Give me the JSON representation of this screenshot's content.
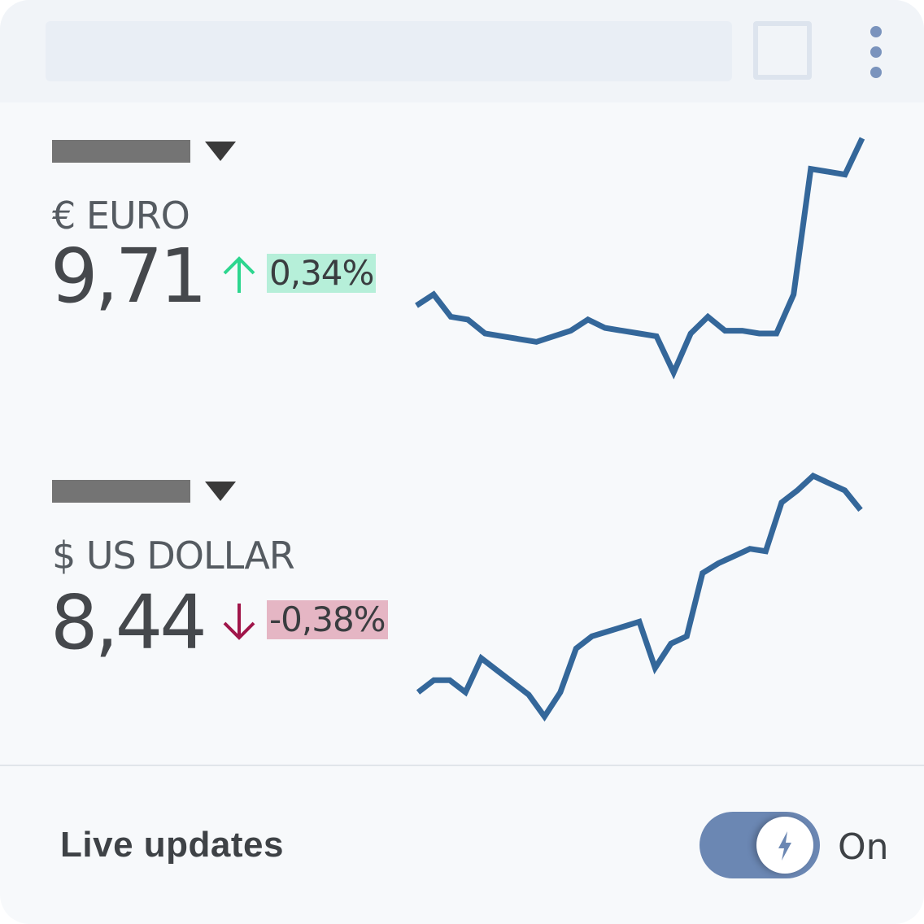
{
  "header": {
    "search_placeholder": "",
    "square_icon": "square-outline-icon",
    "more_icon": "more-vertical-icon"
  },
  "currencies": [
    {
      "label": "€ EURO",
      "value": "9,71",
      "change": "0,34%",
      "direction": "up",
      "change_color": "#2dd68f",
      "change_bg": "#b6efd9",
      "chart_data": {
        "type": "line",
        "series": [
          {
            "values": [
              40,
              44,
              36,
              35,
              30,
              29,
              28,
              27,
              29,
              31,
              35,
              32,
              31,
              30,
              29,
              16,
              30,
              36,
              31,
              31,
              30,
              30,
              44,
              89,
              88,
              87,
              100
            ]
          }
        ]
      }
    },
    {
      "label": "$ US DOLLAR",
      "value": "8,44",
      "change": "-0,38%",
      "direction": "down",
      "change_color": "#a0164a",
      "change_bg": "#e5b6c4",
      "chart_data": {
        "type": "line",
        "series": [
          {
            "values": [
              11,
              16,
              16,
              11,
              25,
              20,
              15,
              10,
              1,
              11,
              29,
              34,
              36,
              38,
              40,
              21,
              31,
              34,
              60,
              64,
              67,
              70,
              69,
              89,
              94,
              100,
              97,
              94,
              86
            ]
          }
        ]
      }
    }
  ],
  "footer": {
    "label": "Live updates",
    "toggle_state": "On",
    "toggle_icon": "lightning-bolt-icon",
    "accent_color": "#6b87b3"
  },
  "line_color": "#34679a"
}
